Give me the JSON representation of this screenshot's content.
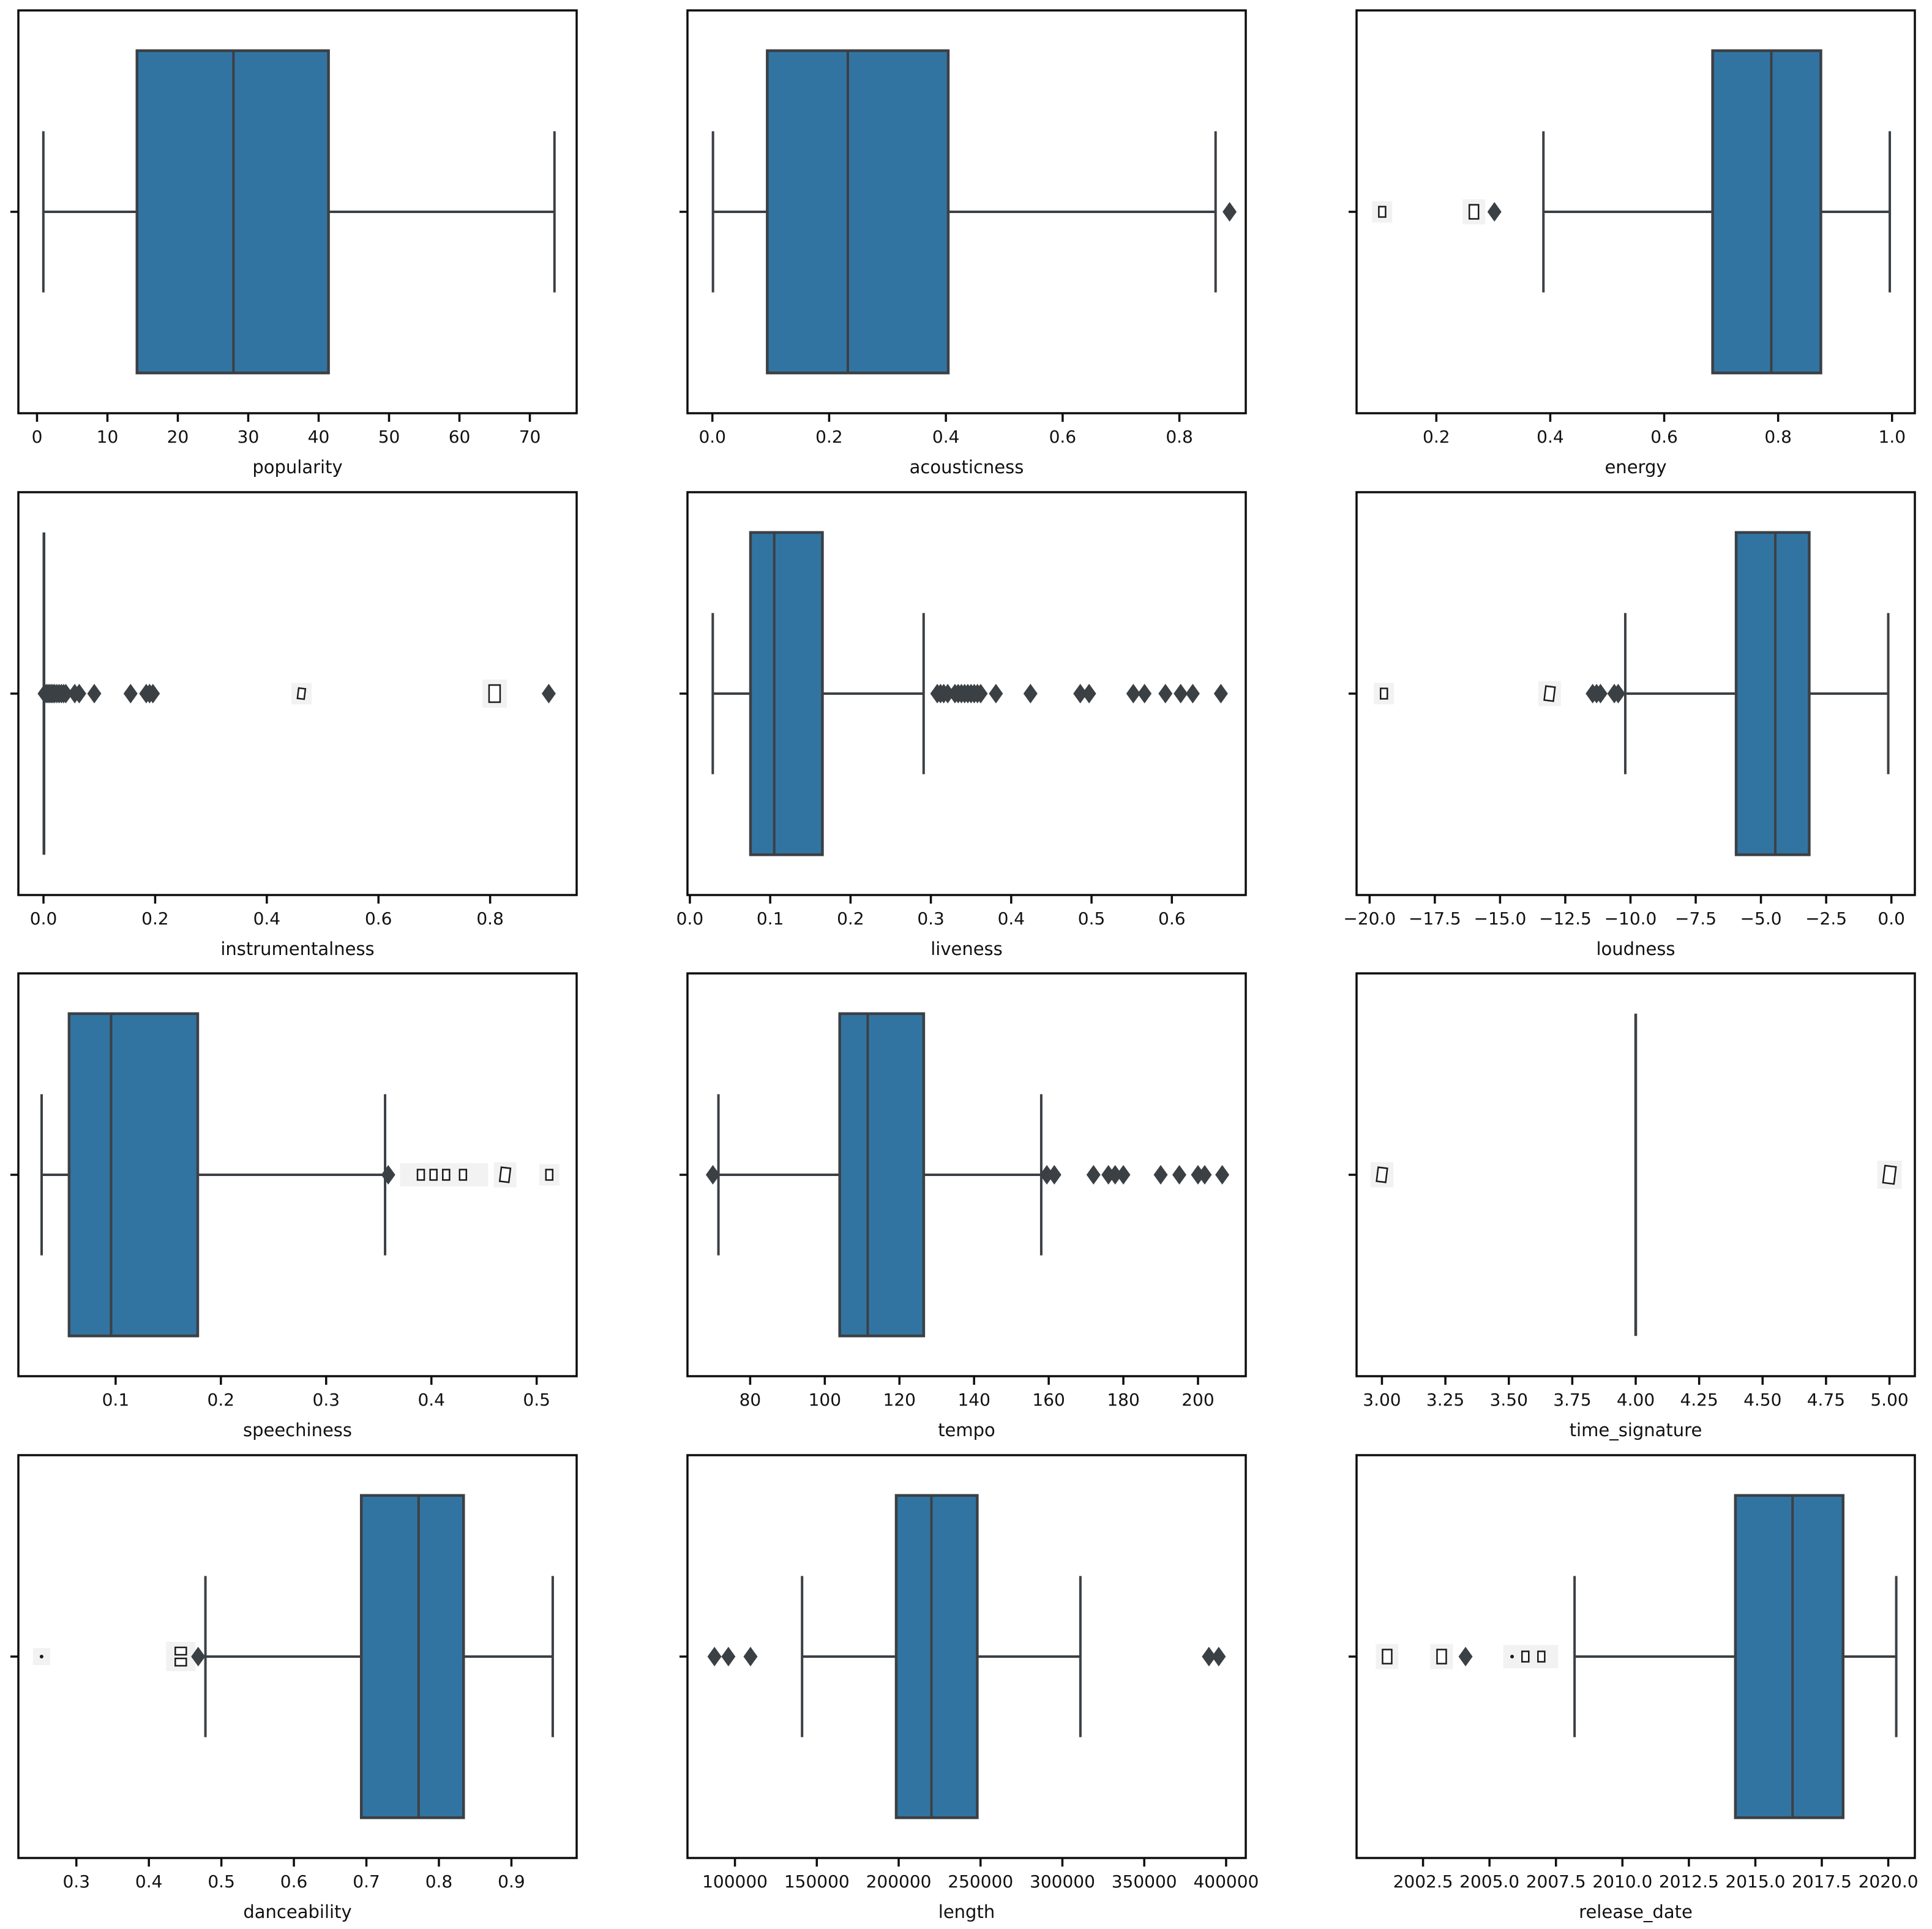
{
  "figure_title": "",
  "colors": {
    "box_fill": "#3274A1",
    "box_edge": "#3B4045",
    "whisker": "#3B4045",
    "outlier": "#3B4045",
    "spine": "#0D0D0D",
    "tick_text": "#111111",
    "tofu_bg": "#F2F2F2",
    "tofu_edge": "#1A1A1A",
    "background": "#FFFFFF"
  },
  "chart_data": [
    {
      "type": "box",
      "xlabel": "popularity",
      "xlim": [
        -2.65,
        76.65
      ],
      "ticks": [
        {
          "v": 0,
          "label": "0"
        },
        {
          "v": 10,
          "label": "10"
        },
        {
          "v": 20,
          "label": "20"
        },
        {
          "v": 30,
          "label": "30"
        },
        {
          "v": 40,
          "label": "40"
        },
        {
          "v": 50,
          "label": "50"
        },
        {
          "v": 60,
          "label": "60"
        },
        {
          "v": 70,
          "label": "70"
        }
      ],
      "box": {
        "whisker_lo": 0.9,
        "q1": 14.2,
        "median": 27.9,
        "q3": 41.4,
        "whisker_hi": 73.5
      },
      "outliers": []
    },
    {
      "type": "box",
      "xlabel": "acousticness",
      "xlim": [
        -0.0427,
        0.9137
      ],
      "ticks": [
        {
          "v": 0.0,
          "label": "0.0"
        },
        {
          "v": 0.2,
          "label": "0.2"
        },
        {
          "v": 0.4,
          "label": "0.4"
        },
        {
          "v": 0.6,
          "label": "0.6"
        },
        {
          "v": 0.8,
          "label": "0.8"
        }
      ],
      "box": {
        "whisker_lo": 0.001,
        "q1": 0.094,
        "median": 0.232,
        "q3": 0.404,
        "whisker_hi": 0.862
      },
      "outliers": [
        {
          "v": 0.886,
          "kind": "diamond"
        }
      ]
    },
    {
      "type": "box",
      "xlabel": "energy",
      "xlim": [
        0.06,
        1.04
      ],
      "ticks": [
        {
          "v": 0.2,
          "label": "0.2"
        },
        {
          "v": 0.4,
          "label": "0.4"
        },
        {
          "v": 0.6,
          "label": "0.6"
        },
        {
          "v": 0.8,
          "label": "0.8"
        },
        {
          "v": 1.0,
          "label": "1.0"
        }
      ],
      "box": {
        "whisker_lo": 0.388,
        "q1": 0.685,
        "median": 0.788,
        "q3": 0.875,
        "whisker_hi": 0.996
      },
      "outliers": [
        {
          "v": 0.105,
          "kind": "tofu",
          "size": "s",
          "bg": true
        },
        {
          "v": 0.266,
          "kind": "tofu",
          "size": "m",
          "bg": true
        },
        {
          "v": 0.302,
          "kind": "diamond"
        }
      ]
    },
    {
      "type": "collapsed",
      "xlabel": "instrumentalness",
      "xlim": [
        -0.045,
        0.955
      ],
      "line_at": 0.0008,
      "ticks": [
        {
          "v": 0.0,
          "label": "0.0"
        },
        {
          "v": 0.2,
          "label": "0.2"
        },
        {
          "v": 0.4,
          "label": "0.4"
        },
        {
          "v": 0.6,
          "label": "0.6"
        },
        {
          "v": 0.8,
          "label": "0.8"
        }
      ],
      "outliers": [
        {
          "v": 0.002,
          "kind": "diamond"
        },
        {
          "v": 0.005,
          "kind": "diamond"
        },
        {
          "v": 0.008,
          "kind": "diamond"
        },
        {
          "v": 0.011,
          "kind": "diamond"
        },
        {
          "v": 0.014,
          "kind": "diamond"
        },
        {
          "v": 0.017,
          "kind": "diamond"
        },
        {
          "v": 0.02,
          "kind": "diamond"
        },
        {
          "v": 0.024,
          "kind": "diamond"
        },
        {
          "v": 0.028,
          "kind": "diamond"
        },
        {
          "v": 0.032,
          "kind": "diamond"
        },
        {
          "v": 0.036,
          "kind": "diamond"
        },
        {
          "v": 0.04,
          "kind": "diamond"
        },
        {
          "v": 0.056,
          "kind": "diamond"
        },
        {
          "v": 0.064,
          "kind": "diamond"
        },
        {
          "v": 0.091,
          "kind": "diamond"
        },
        {
          "v": 0.156,
          "kind": "diamond"
        },
        {
          "v": 0.184,
          "kind": "diamond"
        },
        {
          "v": 0.19,
          "kind": "diamond"
        },
        {
          "v": 0.196,
          "kind": "diamond"
        },
        {
          "v": 0.462,
          "kind": "tofu",
          "size": "s",
          "bg": true,
          "rot": true
        },
        {
          "v": 0.808,
          "kind": "tofu",
          "size": "l",
          "bg": true
        },
        {
          "v": 0.905,
          "kind": "diamond"
        }
      ]
    },
    {
      "type": "box",
      "xlabel": "liveness",
      "xlim": [
        -0.003,
        0.692
      ],
      "ticks": [
        {
          "v": 0.0,
          "label": "0.0"
        },
        {
          "v": 0.1,
          "label": "0.1"
        },
        {
          "v": 0.2,
          "label": "0.2"
        },
        {
          "v": 0.3,
          "label": "0.3"
        },
        {
          "v": 0.4,
          "label": "0.4"
        },
        {
          "v": 0.5,
          "label": "0.5"
        },
        {
          "v": 0.6,
          "label": "0.6"
        }
      ],
      "box": {
        "whisker_lo": 0.0285,
        "q1": 0.0755,
        "median": 0.105,
        "q3": 0.165,
        "whisker_hi": 0.291
      },
      "outliers": [
        {
          "v": 0.308,
          "kind": "diamond"
        },
        {
          "v": 0.312,
          "kind": "diamond"
        },
        {
          "v": 0.316,
          "kind": "diamond"
        },
        {
          "v": 0.321,
          "kind": "diamond"
        },
        {
          "v": 0.33,
          "kind": "diamond"
        },
        {
          "v": 0.334,
          "kind": "diamond"
        },
        {
          "v": 0.338,
          "kind": "diamond"
        },
        {
          "v": 0.342,
          "kind": "diamond"
        },
        {
          "v": 0.346,
          "kind": "diamond"
        },
        {
          "v": 0.35,
          "kind": "diamond"
        },
        {
          "v": 0.354,
          "kind": "diamond"
        },
        {
          "v": 0.358,
          "kind": "diamond"
        },
        {
          "v": 0.362,
          "kind": "diamond"
        },
        {
          "v": 0.381,
          "kind": "diamond"
        },
        {
          "v": 0.424,
          "kind": "diamond"
        },
        {
          "v": 0.486,
          "kind": "diamond"
        },
        {
          "v": 0.497,
          "kind": "diamond"
        },
        {
          "v": 0.552,
          "kind": "diamond"
        },
        {
          "v": 0.566,
          "kind": "diamond"
        },
        {
          "v": 0.592,
          "kind": "diamond"
        },
        {
          "v": 0.611,
          "kind": "diamond"
        },
        {
          "v": 0.626,
          "kind": "diamond"
        },
        {
          "v": 0.661,
          "kind": "diamond"
        }
      ]
    },
    {
      "type": "box",
      "xlabel": "loudness",
      "xlim": [
        -20.5,
        0.9
      ],
      "ticks": [
        {
          "v": -20.0,
          "label": "−20.0"
        },
        {
          "v": -17.5,
          "label": "−17.5"
        },
        {
          "v": -15.0,
          "label": "−15.0"
        },
        {
          "v": -12.5,
          "label": "−12.5"
        },
        {
          "v": -10.0,
          "label": "−10.0"
        },
        {
          "v": -7.5,
          "label": "−7.5"
        },
        {
          "v": -5.0,
          "label": "−5.0"
        },
        {
          "v": -2.5,
          "label": "−2.5"
        },
        {
          "v": 0.0,
          "label": "0.0"
        }
      ],
      "box": {
        "whisker_lo": -10.2,
        "q1": -5.95,
        "median": -4.45,
        "q3": -3.15,
        "whisker_hi": -0.12
      },
      "outliers": [
        {
          "v": -19.45,
          "kind": "tofu",
          "size": "s",
          "bg": true
        },
        {
          "v": -13.1,
          "kind": "tofu",
          "size": "m",
          "bg": true,
          "rot": true
        },
        {
          "v": -11.45,
          "kind": "diamond"
        },
        {
          "v": -11.3,
          "kind": "diamond"
        },
        {
          "v": -11.15,
          "kind": "diamond"
        },
        {
          "v": -10.62,
          "kind": "diamond"
        },
        {
          "v": -10.47,
          "kind": "diamond"
        }
      ]
    },
    {
      "type": "box",
      "xlabel": "speechiness",
      "xlim": [
        0.0076,
        0.538
      ],
      "ticks": [
        {
          "v": 0.1,
          "label": "0.1"
        },
        {
          "v": 0.2,
          "label": "0.2"
        },
        {
          "v": 0.3,
          "label": "0.3"
        },
        {
          "v": 0.4,
          "label": "0.4"
        },
        {
          "v": 0.5,
          "label": "0.5"
        }
      ],
      "box": {
        "whisker_lo": 0.0297,
        "q1": 0.0558,
        "median": 0.0957,
        "q3": 0.178,
        "whisker_hi": 0.356
      },
      "outliers": [
        {
          "v": 0.359,
          "kind": "diamond"
        },
        {
          "v0": 0.376,
          "v1": 0.448,
          "kind": "band"
        },
        {
          "v": 0.39,
          "kind": "tofu",
          "size": "s"
        },
        {
          "v": 0.402,
          "kind": "tofu",
          "size": "s"
        },
        {
          "v": 0.414,
          "kind": "tofu",
          "size": "s"
        },
        {
          "v": 0.43,
          "kind": "tofu",
          "size": "s"
        },
        {
          "v": 0.47,
          "kind": "tofu",
          "size": "m",
          "bg": true,
          "rot": true
        },
        {
          "v": 0.512,
          "kind": "tofu",
          "size": "s",
          "bg": true
        }
      ]
    },
    {
      "type": "box",
      "xlabel": "tempo",
      "xlim": [
        63.2,
        212.8
      ],
      "ticks": [
        {
          "v": 80,
          "label": "80"
        },
        {
          "v": 100,
          "label": "100"
        },
        {
          "v": 120,
          "label": "120"
        },
        {
          "v": 140,
          "label": "140"
        },
        {
          "v": 160,
          "label": "160"
        },
        {
          "v": 180,
          "label": "180"
        },
        {
          "v": 200,
          "label": "200"
        }
      ],
      "box": {
        "whisker_lo": 71.5,
        "q1": 104,
        "median": 111.5,
        "q3": 126.5,
        "whisker_hi": 158
      },
      "outliers": [
        {
          "v": 70,
          "kind": "diamond"
        },
        {
          "v": 159.5,
          "kind": "diamond"
        },
        {
          "v": 161.5,
          "kind": "diamond"
        },
        {
          "v": 172,
          "kind": "diamond"
        },
        {
          "v": 176,
          "kind": "diamond"
        },
        {
          "v": 177.8,
          "kind": "diamond"
        },
        {
          "v": 180,
          "kind": "diamond"
        },
        {
          "v": 190,
          "kind": "diamond"
        },
        {
          "v": 195,
          "kind": "diamond"
        },
        {
          "v": 200,
          "kind": "diamond"
        },
        {
          "v": 201.8,
          "kind": "diamond"
        },
        {
          "v": 206.5,
          "kind": "diamond"
        }
      ]
    },
    {
      "type": "collapsed",
      "xlabel": "time_signature",
      "xlim": [
        2.9,
        5.1
      ],
      "line_at": 4.0,
      "ticks": [
        {
          "v": 3.0,
          "label": "3.00"
        },
        {
          "v": 3.25,
          "label": "3.25"
        },
        {
          "v": 3.5,
          "label": "3.50"
        },
        {
          "v": 3.75,
          "label": "3.75"
        },
        {
          "v": 4.0,
          "label": "4.00"
        },
        {
          "v": 4.25,
          "label": "4.25"
        },
        {
          "v": 4.5,
          "label": "4.50"
        },
        {
          "v": 4.75,
          "label": "4.75"
        },
        {
          "v": 5.0,
          "label": "5.00"
        }
      ],
      "outliers": [
        {
          "v": 3.0,
          "kind": "tofu",
          "size": "m",
          "bg": true,
          "rot": true
        },
        {
          "v": 5.0,
          "kind": "tofu",
          "size": "l",
          "bg": true,
          "rot": true
        }
      ]
    },
    {
      "type": "box",
      "xlabel": "danceability",
      "xlim": [
        0.22,
        0.99
      ],
      "ticks": [
        {
          "v": 0.3,
          "label": "0.3"
        },
        {
          "v": 0.4,
          "label": "0.4"
        },
        {
          "v": 0.5,
          "label": "0.5"
        },
        {
          "v": 0.6,
          "label": "0.6"
        },
        {
          "v": 0.7,
          "label": "0.7"
        },
        {
          "v": 0.8,
          "label": "0.8"
        },
        {
          "v": 0.9,
          "label": "0.9"
        }
      ],
      "box": {
        "whisker_lo": 0.478,
        "q1": 0.693,
        "median": 0.772,
        "q3": 0.834,
        "whisker_hi": 0.957
      },
      "outliers": [
        {
          "v": 0.252,
          "kind": "dot",
          "bg": true
        },
        {
          "v": 0.444,
          "kind": "tofu2",
          "bg": true
        },
        {
          "v": 0.468,
          "kind": "diamond"
        }
      ]
    },
    {
      "type": "box",
      "xlabel": "length",
      "xlim": [
        71000,
        412000
      ],
      "ticks": [
        {
          "v": 100000,
          "label": "100000"
        },
        {
          "v": 150000,
          "label": "150000"
        },
        {
          "v": 200000,
          "label": "200000"
        },
        {
          "v": 250000,
          "label": "250000"
        },
        {
          "v": 300000,
          "label": "300000"
        },
        {
          "v": 350000,
          "label": "350000"
        },
        {
          "v": 400000,
          "label": "400000"
        }
      ],
      "box": {
        "whisker_lo": 141000,
        "q1": 198500,
        "median": 220000,
        "q3": 248000,
        "whisker_hi": 311000
      },
      "outliers": [
        {
          "v": 87500,
          "kind": "diamond"
        },
        {
          "v": 96000,
          "kind": "diamond"
        },
        {
          "v": 109500,
          "kind": "diamond"
        },
        {
          "v": 389500,
          "kind": "diamond"
        },
        {
          "v": 395500,
          "kind": "diamond"
        }
      ]
    },
    {
      "type": "box",
      "xlabel": "release_date",
      "xlim": [
        2000.0,
        2021.0
      ],
      "ticks": [
        {
          "v": 2002.5,
          "label": "2002.5"
        },
        {
          "v": 2005.0,
          "label": "2005.0"
        },
        {
          "v": 2007.5,
          "label": "2007.5"
        },
        {
          "v": 2010.0,
          "label": "2010.0"
        },
        {
          "v": 2012.5,
          "label": "2012.5"
        },
        {
          "v": 2015.0,
          "label": "2015.0"
        },
        {
          "v": 2017.5,
          "label": "2017.5"
        },
        {
          "v": 2020.0,
          "label": "2020.0"
        }
      ],
      "box": {
        "whisker_lo": 2008.2,
        "q1": 2014.25,
        "median": 2016.4,
        "q3": 2018.3,
        "whisker_hi": 2020.3
      },
      "outliers": [
        {
          "v": 2001.15,
          "kind": "tofu",
          "size": "m",
          "bg": true
        },
        {
          "v": 2003.2,
          "kind": "tofu",
          "size": "m",
          "bg": true
        },
        {
          "v": 2004.1,
          "kind": "diamond"
        },
        {
          "v0": 2005.75,
          "v1": 2007.35,
          "kind": "band"
        },
        {
          "v": 2005.85,
          "kind": "dot"
        },
        {
          "v": 2006.35,
          "kind": "tofu",
          "size": "s"
        },
        {
          "v": 2006.95,
          "kind": "tofu",
          "size": "s"
        }
      ]
    }
  ]
}
